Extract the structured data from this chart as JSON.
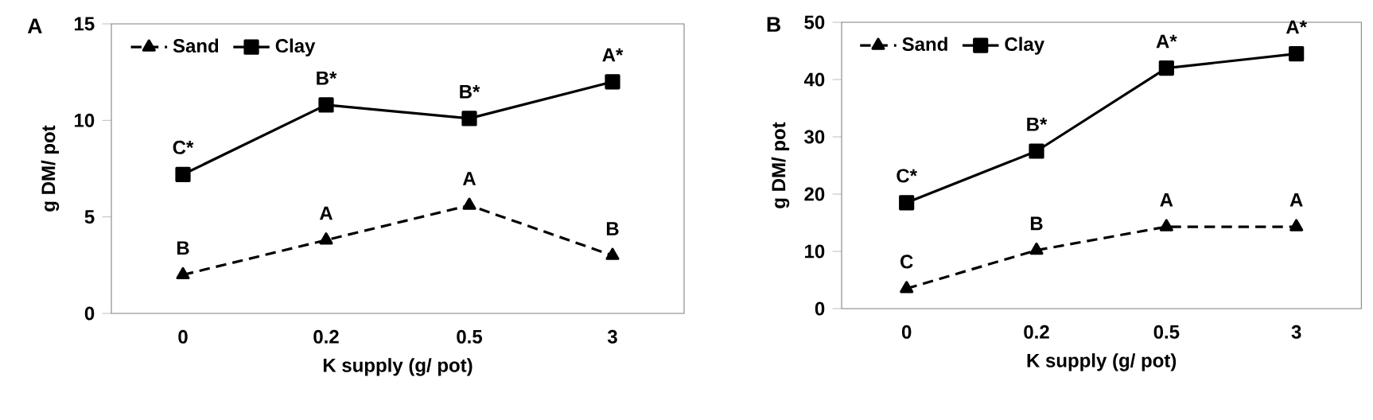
{
  "chart_data": [
    {
      "type": "line",
      "title": "A",
      "xlabel": "K supply (g/ pot)",
      "ylabel": "g DM/ pot",
      "categories": [
        "0",
        "0.2",
        "0.5",
        "3"
      ],
      "ylim": [
        0,
        15
      ],
      "yticks": [
        0,
        5,
        10,
        15
      ],
      "legend": "top left",
      "grid": false,
      "series": [
        {
          "name": "Sand",
          "color": "#000000",
          "values": [
            2.0,
            3.8,
            5.6,
            3.0
          ],
          "marker": "triangle",
          "line_style": "dashed"
        },
        {
          "name": "Clay",
          "color": "#000000",
          "values": [
            7.2,
            10.8,
            10.1,
            12.0
          ],
          "marker": "square",
          "line_style": "solid"
        }
      ],
      "annotations": [
        {
          "text": "B",
          "x": "0",
          "y": 2.0
        },
        {
          "text": "A",
          "x": "0.2",
          "y": 3.8
        },
        {
          "text": "A",
          "x": "0.5",
          "y": 5.6
        },
        {
          "text": "B",
          "x": "3",
          "y": 3.0
        },
        {
          "text": "C*",
          "x": "0",
          "y": 7.2
        },
        {
          "text": "B*",
          "x": "0.2",
          "y": 10.8
        },
        {
          "text": "B*",
          "x": "0.5",
          "y": 10.1
        },
        {
          "text": "A*",
          "x": "3",
          "y": 12.0
        }
      ]
    },
    {
      "type": "line",
      "title": "B",
      "xlabel": "K supply (g/ pot)",
      "ylabel": "g DM/ pot",
      "categories": [
        "0",
        "0.2",
        "0.5",
        "3"
      ],
      "ylim": [
        0,
        50
      ],
      "yticks": [
        0,
        10,
        20,
        30,
        40,
        50
      ],
      "legend": "top left",
      "grid": false,
      "series": [
        {
          "name": "Sand",
          "color": "#000000",
          "values": [
            3.5,
            10.2,
            14.3,
            14.3
          ],
          "marker": "triangle",
          "line_style": "dashed"
        },
        {
          "name": "Clay",
          "color": "#000000",
          "values": [
            18.5,
            27.5,
            42.0,
            44.5
          ],
          "marker": "square",
          "line_style": "solid"
        }
      ],
      "annotations": [
        {
          "text": "C",
          "x": "0",
          "y": 3.5
        },
        {
          "text": "B",
          "x": "0.2",
          "y": 10.2
        },
        {
          "text": "A",
          "x": "0.5",
          "y": 14.3
        },
        {
          "text": "A",
          "x": "3",
          "y": 14.3
        },
        {
          "text": "C*",
          "x": "0",
          "y": 18.5
        },
        {
          "text": "B*",
          "x": "0.2",
          "y": 27.5
        },
        {
          "text": "A*",
          "x": "0.5",
          "y": 42.0
        },
        {
          "text": "A*",
          "x": "3",
          "y": 44.5
        }
      ]
    }
  ]
}
